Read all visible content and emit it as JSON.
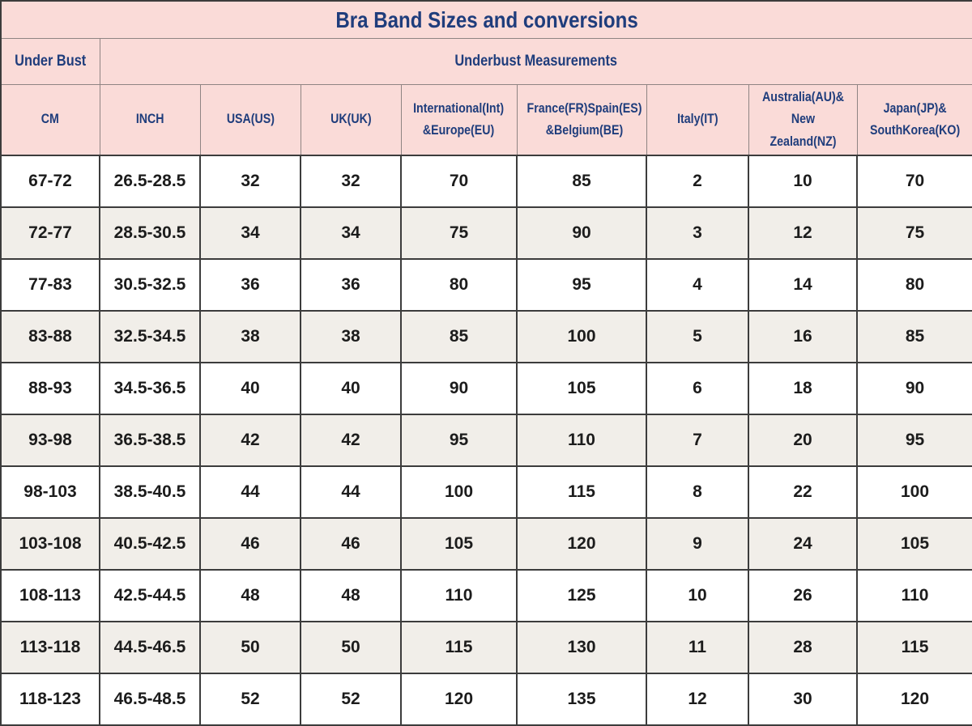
{
  "title": "Bra Band Sizes and conversions",
  "header": {
    "under_bust": "Under Bust",
    "underbust_measurements": "Underbust Measurements"
  },
  "columns": [
    {
      "label": "CM"
    },
    {
      "label": "INCH"
    },
    {
      "label": "USA(US)"
    },
    {
      "label": "UK(UK)"
    },
    {
      "label": "International(Int)\n&Europe(EU)"
    },
    {
      "label": "France(FR)Spain(ES)\n&Belgium(BE)"
    },
    {
      "label": "Italy(IT)"
    },
    {
      "label": "Australia(AU)&\nNew Zealand(NZ)"
    },
    {
      "label": "Japan(JP)&\nSouthKorea(KO)"
    }
  ],
  "rows": [
    [
      "67-72",
      "26.5-28.5",
      "32",
      "32",
      "70",
      "85",
      "2",
      "10",
      "70"
    ],
    [
      "72-77",
      "28.5-30.5",
      "34",
      "34",
      "75",
      "90",
      "3",
      "12",
      "75"
    ],
    [
      "77-83",
      "30.5-32.5",
      "36",
      "36",
      "80",
      "95",
      "4",
      "14",
      "80"
    ],
    [
      "83-88",
      "32.5-34.5",
      "38",
      "38",
      "85",
      "100",
      "5",
      "16",
      "85"
    ],
    [
      "88-93",
      "34.5-36.5",
      "40",
      "40",
      "90",
      "105",
      "6",
      "18",
      "90"
    ],
    [
      "93-98",
      "36.5-38.5",
      "42",
      "42",
      "95",
      "110",
      "7",
      "20",
      "95"
    ],
    [
      "98-103",
      "38.5-40.5",
      "44",
      "44",
      "100",
      "115",
      "8",
      "22",
      "100"
    ],
    [
      "103-108",
      "40.5-42.5",
      "46",
      "46",
      "105",
      "120",
      "9",
      "24",
      "105"
    ],
    [
      "108-113",
      "42.5-44.5",
      "48",
      "48",
      "110",
      "125",
      "10",
      "26",
      "110"
    ],
    [
      "113-118",
      "44.5-46.5",
      "50",
      "50",
      "115",
      "130",
      "11",
      "28",
      "115"
    ],
    [
      "118-123",
      "46.5-48.5",
      "52",
      "52",
      "120",
      "135",
      "12",
      "30",
      "120"
    ]
  ],
  "colors": {
    "header_background": "#fadbd8",
    "header_text": "#1f3d7c",
    "data_text": "#1c1c1c",
    "row_alternate_background": "#f1eee9",
    "row_background": "#ffffff",
    "grid_border": "#3c3c3c",
    "header_border": "#8f8483"
  }
}
